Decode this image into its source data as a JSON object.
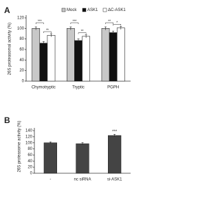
{
  "chart_data": [
    {
      "type": "bar",
      "panel_label": "A",
      "y_label": "26S proteasomal activity (%)",
      "categories": [
        "Chymotryptic",
        "Tryptic",
        "PGPH"
      ],
      "series": [
        {
          "name": "Mock",
          "color": "#c8c8c8",
          "values": [
            100,
            100,
            100
          ],
          "errors": [
            3,
            3,
            3
          ]
        },
        {
          "name": "ASK1",
          "color": "#111111",
          "values": [
            72,
            77,
            92
          ],
          "errors": [
            3,
            3,
            3
          ]
        },
        {
          "name": "ΔC-ASK1",
          "color": "#ffffff",
          "values": [
            87,
            85,
            101
          ],
          "errors": [
            3,
            3,
            3
          ]
        }
      ],
      "annotations": [
        "***",
        "**",
        "***",
        "**",
        "**",
        "*"
      ],
      "ylim": [
        0,
        120
      ],
      "yticks": [
        0,
        20,
        40,
        60,
        80,
        100,
        120
      ],
      "legend": "top"
    },
    {
      "type": "bar",
      "panel_label": "B",
      "y_label": "26S proteasome activity (%)",
      "categories": [
        "-",
        "nc siRNA",
        "si-ASK1"
      ],
      "values": [
        100,
        97,
        124
      ],
      "errors": [
        3,
        4,
        4
      ],
      "color": "#444444",
      "annotations": [
        "***"
      ],
      "ylim": [
        0,
        140
      ],
      "yticks": [
        0,
        20,
        40,
        60,
        80,
        100,
        120,
        140
      ]
    }
  ]
}
